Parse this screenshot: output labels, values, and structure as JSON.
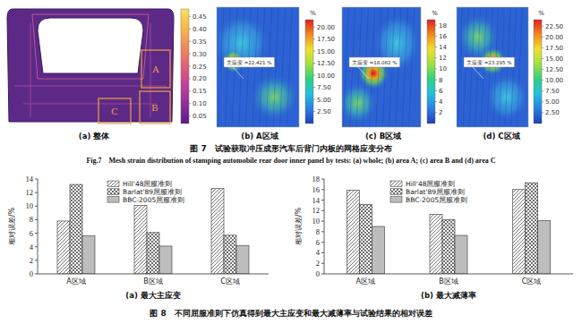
{
  "figure7": {
    "panels": [
      {
        "label": "(a) 整体",
        "region_labels": [
          "A",
          "B",
          "C"
        ],
        "colorbar": {
          "range": [
            0.02,
            0.48
          ],
          "ticks": [
            0.45,
            {
              "value": 0.4,
              "label": "0.40"
            },
            0.35,
            {
              "value": 0.3,
              "label": "0.30"
            },
            0.25,
            {
              "value": 0.2,
              "label": "0.20"
            },
            0.15,
            {
              "value": 0.1,
              "label": "0.10"
            },
            0.05
          ]
        }
      },
      {
        "label": "(b) A区域",
        "annotation": "主应变 =22.421 %",
        "colorbar": {
          "unit": "%",
          "range": [
            0,
            21.5
          ],
          "ticks": [
            {
              "value": 20,
              "label": "20.00"
            },
            {
              "value": 17.5,
              "label": "17.50"
            },
            {
              "value": 15,
              "label": "15.00"
            },
            {
              "value": 12.5,
              "label": "12.50"
            },
            {
              "value": 10,
              "label": "10.00"
            },
            {
              "value": 7.5,
              "label": "7.50"
            },
            {
              "value": 5,
              "label": "5.00"
            },
            {
              "value": 2.5,
              "label": "2.50"
            }
          ]
        }
      },
      {
        "label": "(c) B区域",
        "annotation": "主应变 =18.082 %",
        "colorbar": {
          "unit": "%",
          "range": [
            0,
            19
          ],
          "ticks": [
            18,
            16,
            14,
            12,
            10,
            8,
            6,
            4,
            2
          ]
        }
      },
      {
        "label": "(d) C区域",
        "annotation": "主应变 =23.295 %",
        "colorbar": {
          "unit": "%",
          "range": [
            0,
            24
          ],
          "ticks": [
            {
              "value": 22.5,
              "label": "22.50"
            },
            {
              "value": 20,
              "label": "20.00"
            },
            {
              "value": 17.5,
              "label": "17.50"
            },
            {
              "value": 15,
              "label": "15.00"
            },
            {
              "value": 12.5,
              "label": "12.50"
            },
            {
              "value": 10,
              "label": "10.00"
            },
            {
              "value": 7.5,
              "label": "7.50"
            },
            {
              "value": 5,
              "label": "5.00"
            },
            {
              "value": 2.5,
              "label": "2.50"
            }
          ]
        }
      }
    ],
    "caption_cn": "图 7　试验获取冲压成形汽车后背门内板的网格应变分布",
    "caption_en": "Fig.7　Mesh strain distribution of stamping automobile rear door inner panel by tests: (a) whole; (b) area A; (c) area B and (d) area C"
  },
  "chart_data": [
    {
      "type": "bar",
      "title": "(a) 最大主应变",
      "y_label": "相对误差/%",
      "categories": [
        "A区域",
        "B区域",
        "C区域"
      ],
      "series": [
        {
          "name": "Hill'48屈服准则",
          "color": "#555555",
          "values": [
            7.8,
            10.1,
            12.6
          ]
        },
        {
          "name": "Barlat'89屈服准则",
          "color": "#333333",
          "values": [
            13.2,
            6.1,
            5.7
          ]
        },
        {
          "name": "BBC-2005屈服准则",
          "color": "#666666",
          "values": [
            5.6,
            4.1,
            4.2
          ]
        }
      ],
      "ylim": [
        0,
        14
      ],
      "yticks": [
        0,
        2,
        4,
        6,
        8,
        10,
        12,
        14
      ],
      "grid": false,
      "legend": "top"
    },
    {
      "type": "bar",
      "title": "(b) 最大减薄率",
      "y_label": "相对误差/%",
      "categories": [
        "A区域",
        "B区域",
        "C区域"
      ],
      "series": [
        {
          "name": "Hill'48屈服准则",
          "color": "#555555",
          "values": [
            15.9,
            11.3,
            16.0
          ]
        },
        {
          "name": "Barlat'89屈服准则",
          "color": "#333333",
          "values": [
            13.2,
            10.3,
            17.3
          ]
        },
        {
          "name": "BBC-2005屈服准则",
          "color": "#666666",
          "values": [
            9.0,
            7.3,
            10.1
          ]
        }
      ],
      "ylim": [
        0,
        18
      ],
      "yticks": [
        0,
        2,
        4,
        6,
        8,
        10,
        12,
        14,
        16,
        18
      ],
      "grid": false,
      "legend": "top"
    }
  ],
  "figure8": {
    "caption": "图 8　不同屈服准则下仿真得到最大主应变和最大减薄率与试验结果的相对误差"
  }
}
